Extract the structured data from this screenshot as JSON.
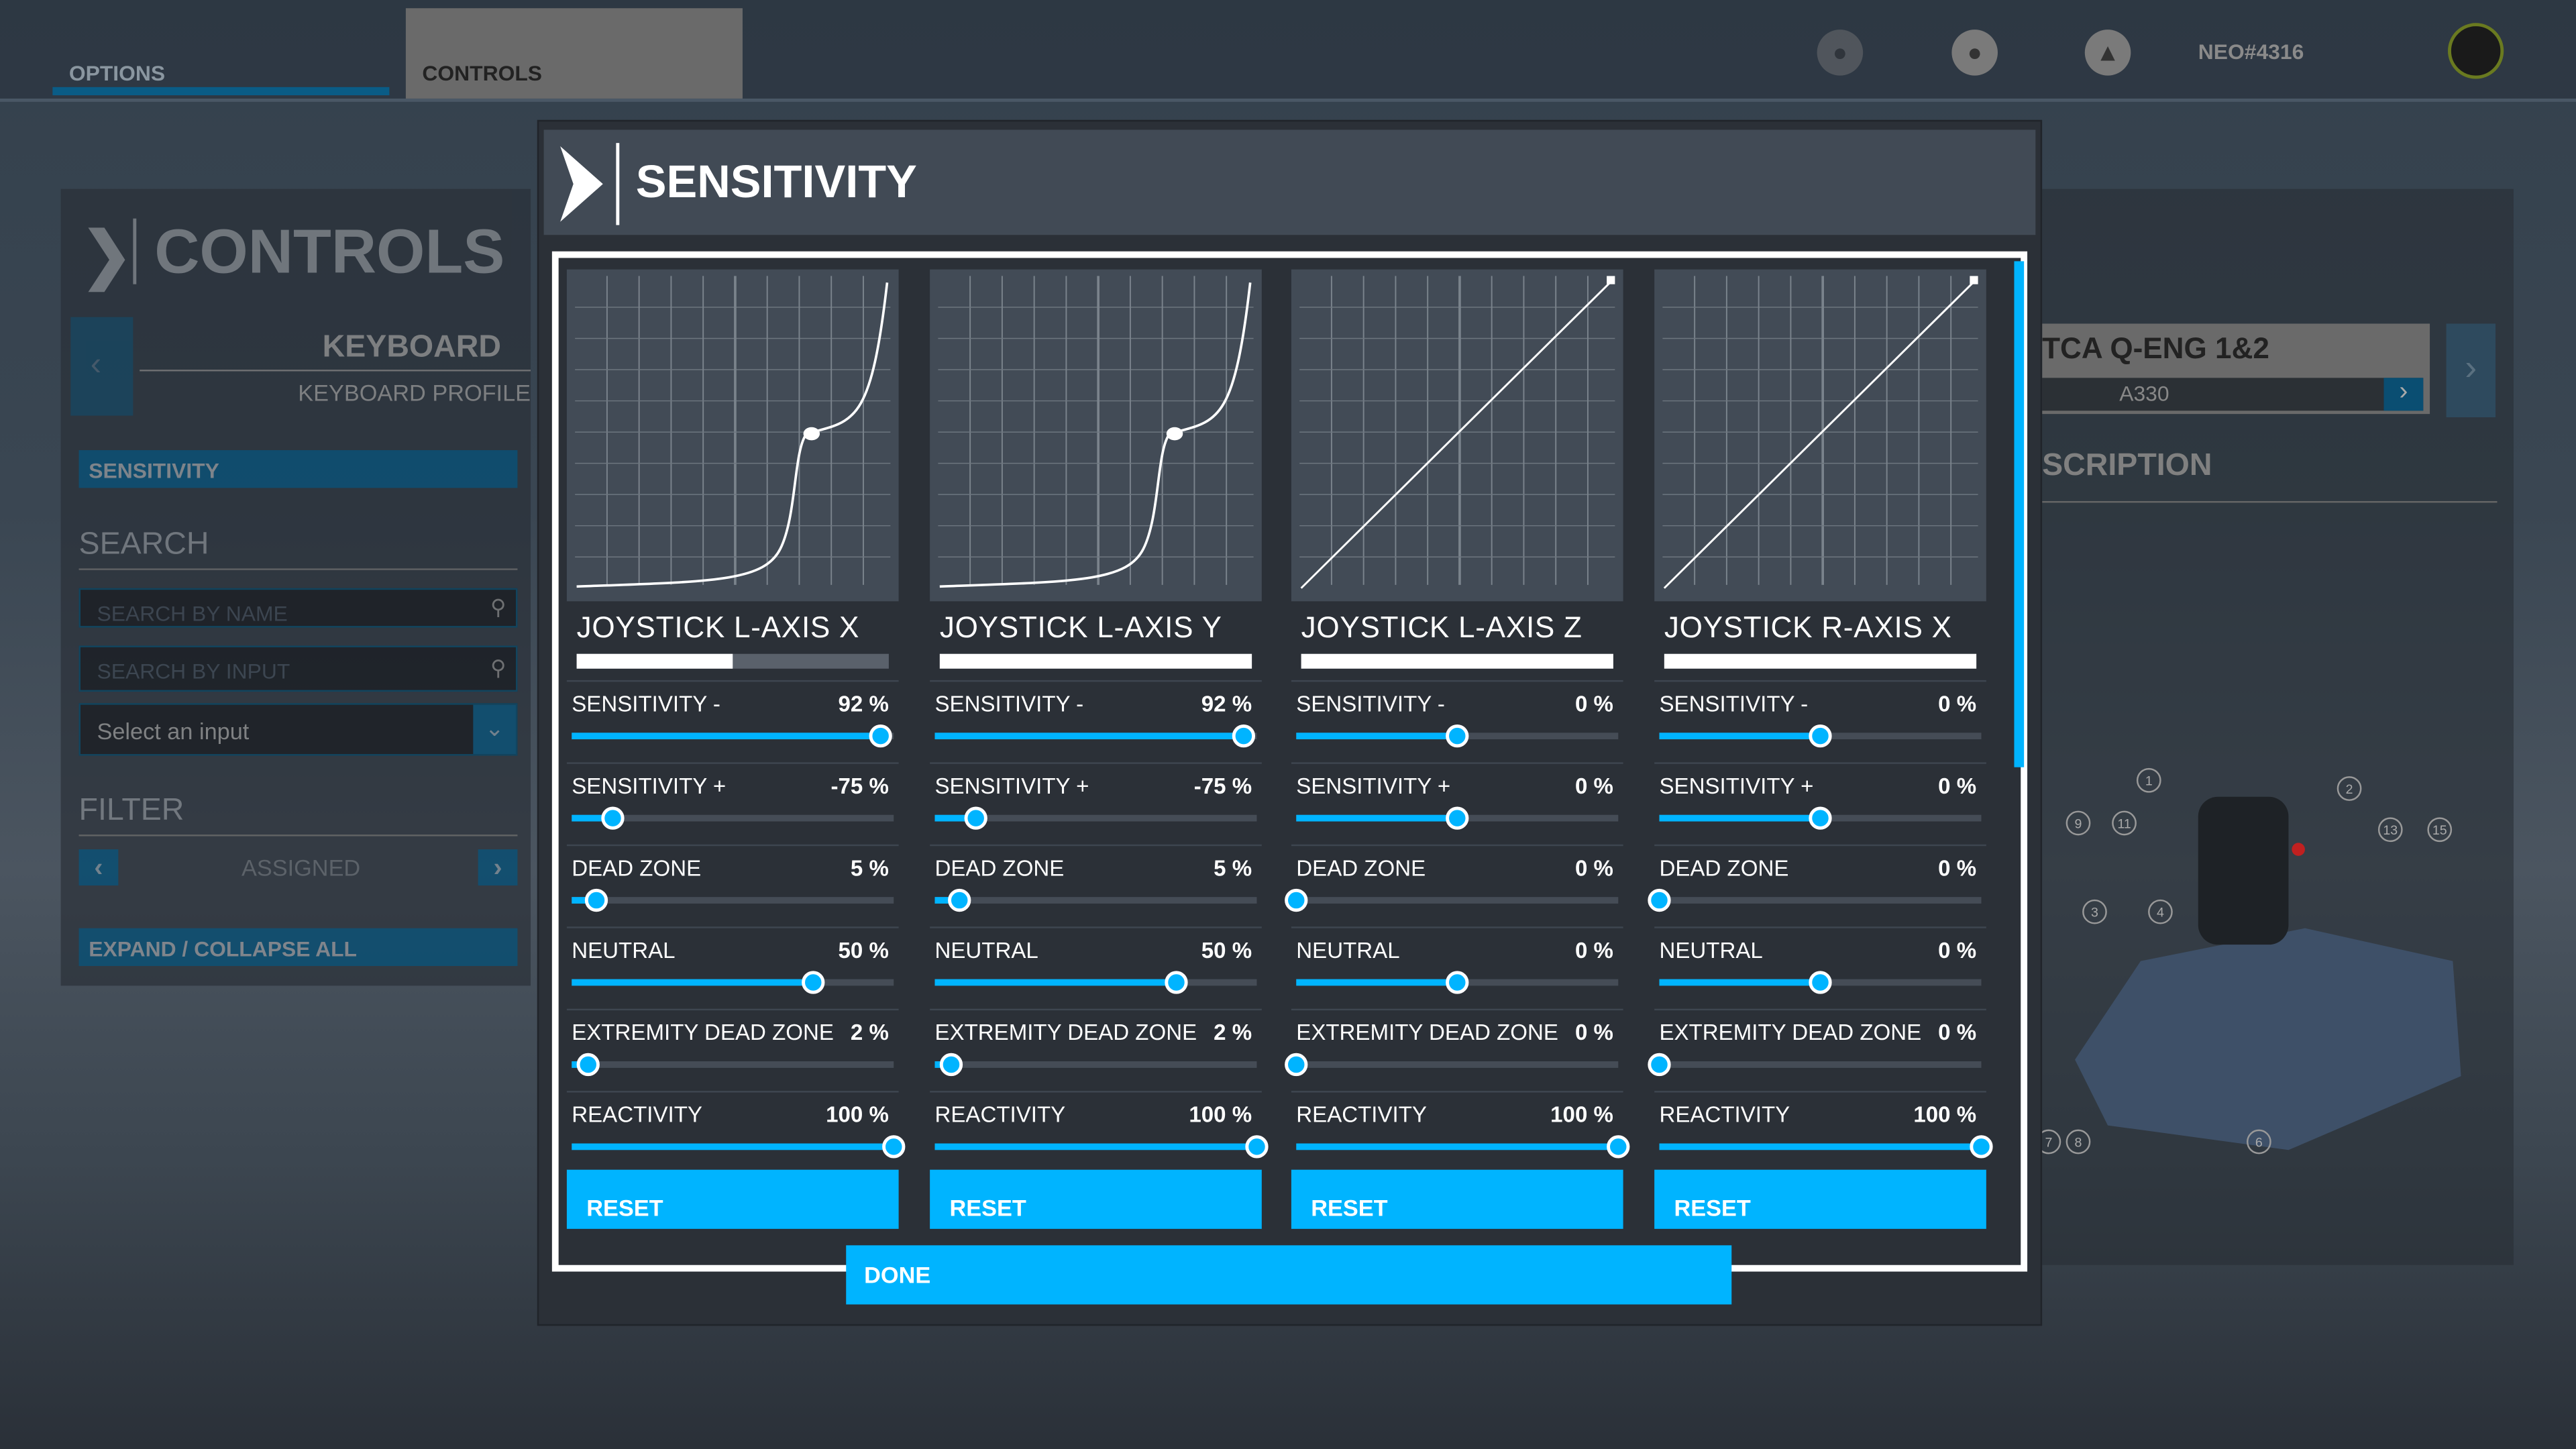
{
  "topbar": {
    "tabs": [
      {
        "label": "OPTIONS"
      },
      {
        "label": "CONTROLS"
      }
    ],
    "username": "NEO#4316"
  },
  "left_panel": {
    "title": "CONTROLS",
    "device": "KEYBOARD",
    "profile": "KEYBOARD PROFILE",
    "sensitivity_label": "SENSITIVITY",
    "search_title": "SEARCH",
    "search_name_placeholder": "SEARCH BY NAME",
    "search_input_placeholder": "SEARCH BY INPUT",
    "select_input": "Select an input",
    "filter_title": "FILTER",
    "filter_value": "ASSIGNED",
    "expand_label": "EXPAND / COLLAPSE ALL"
  },
  "right_panel": {
    "device": "TCA Q-ENG 1&2",
    "profile": "A330",
    "description_title": "SCRIPTION",
    "callouts": [
      "1",
      "2",
      "3",
      "4",
      "6",
      "7",
      "8",
      "9",
      "11",
      "13",
      "15"
    ]
  },
  "modal": {
    "title": "SENSITIVITY",
    "done_label": "DONE",
    "reset_label": "RESET",
    "axes": [
      {
        "name": "JOYSTICK L-AXIS X",
        "axis_position": 0.5,
        "curve": "s-curve",
        "settings": [
          {
            "label": "SENSITIVITY -",
            "value": "92 %",
            "num": 92,
            "min": -100,
            "max": 100
          },
          {
            "label": "SENSITIVITY +",
            "value": "-75 %",
            "num": -75,
            "min": -100,
            "max": 100
          },
          {
            "label": "DEAD ZONE",
            "value": "5 %",
            "num": 5,
            "min": 0,
            "max": 65
          },
          {
            "label": "NEUTRAL",
            "value": "50 %",
            "num": 50,
            "min": -100,
            "max": 100
          },
          {
            "label": "EXTREMITY DEAD ZONE",
            "value": "2 %",
            "num": 2,
            "min": 0,
            "max": 40
          },
          {
            "label": "REACTIVITY",
            "value": "100 %",
            "num": 100,
            "min": 0,
            "max": 100
          }
        ]
      },
      {
        "name": "JOYSTICK L-AXIS Y",
        "axis_position": 1,
        "curve": "s-curve",
        "settings": [
          {
            "label": "SENSITIVITY -",
            "value": "92 %",
            "num": 92,
            "min": -100,
            "max": 100
          },
          {
            "label": "SENSITIVITY +",
            "value": "-75 %",
            "num": -75,
            "min": -100,
            "max": 100
          },
          {
            "label": "DEAD ZONE",
            "value": "5 %",
            "num": 5,
            "min": 0,
            "max": 65
          },
          {
            "label": "NEUTRAL",
            "value": "50 %",
            "num": 50,
            "min": -100,
            "max": 100
          },
          {
            "label": "EXTREMITY DEAD ZONE",
            "value": "2 %",
            "num": 2,
            "min": 0,
            "max": 40
          },
          {
            "label": "REACTIVITY",
            "value": "100 %",
            "num": 100,
            "min": 0,
            "max": 100
          }
        ]
      },
      {
        "name": "JOYSTICK L-AXIS Z",
        "axis_position": 1,
        "curve": "linear",
        "settings": [
          {
            "label": "SENSITIVITY -",
            "value": "0 %",
            "num": 0,
            "min": -100,
            "max": 100
          },
          {
            "label": "SENSITIVITY +",
            "value": "0 %",
            "num": 0,
            "min": -100,
            "max": 100
          },
          {
            "label": "DEAD ZONE",
            "value": "0 %",
            "num": 0,
            "min": 0,
            "max": 65
          },
          {
            "label": "NEUTRAL",
            "value": "0 %",
            "num": 0,
            "min": -100,
            "max": 100
          },
          {
            "label": "EXTREMITY DEAD ZONE",
            "value": "0 %",
            "num": 0,
            "min": 0,
            "max": 40
          },
          {
            "label": "REACTIVITY",
            "value": "100 %",
            "num": 100,
            "min": 0,
            "max": 100
          }
        ]
      },
      {
        "name": "JOYSTICK R-AXIS X",
        "axis_position": 1,
        "curve": "linear",
        "settings": [
          {
            "label": "SENSITIVITY -",
            "value": "0 %",
            "num": 0,
            "min": -100,
            "max": 100
          },
          {
            "label": "SENSITIVITY +",
            "value": "0 %",
            "num": 0,
            "min": -100,
            "max": 100
          },
          {
            "label": "DEAD ZONE",
            "value": "0 %",
            "num": 0,
            "min": 0,
            "max": 65
          },
          {
            "label": "NEUTRAL",
            "value": "0 %",
            "num": 0,
            "min": -100,
            "max": 100
          },
          {
            "label": "EXTREMITY DEAD ZONE",
            "value": "0 %",
            "num": 0,
            "min": 0,
            "max": 40
          },
          {
            "label": "REACTIVITY",
            "value": "100 %",
            "num": 100,
            "min": 0,
            "max": 100
          }
        ]
      }
    ]
  },
  "colors": {
    "accent": "#00b4ff",
    "dark_blue": "#0a4e72",
    "panel": "#2b3037"
  }
}
